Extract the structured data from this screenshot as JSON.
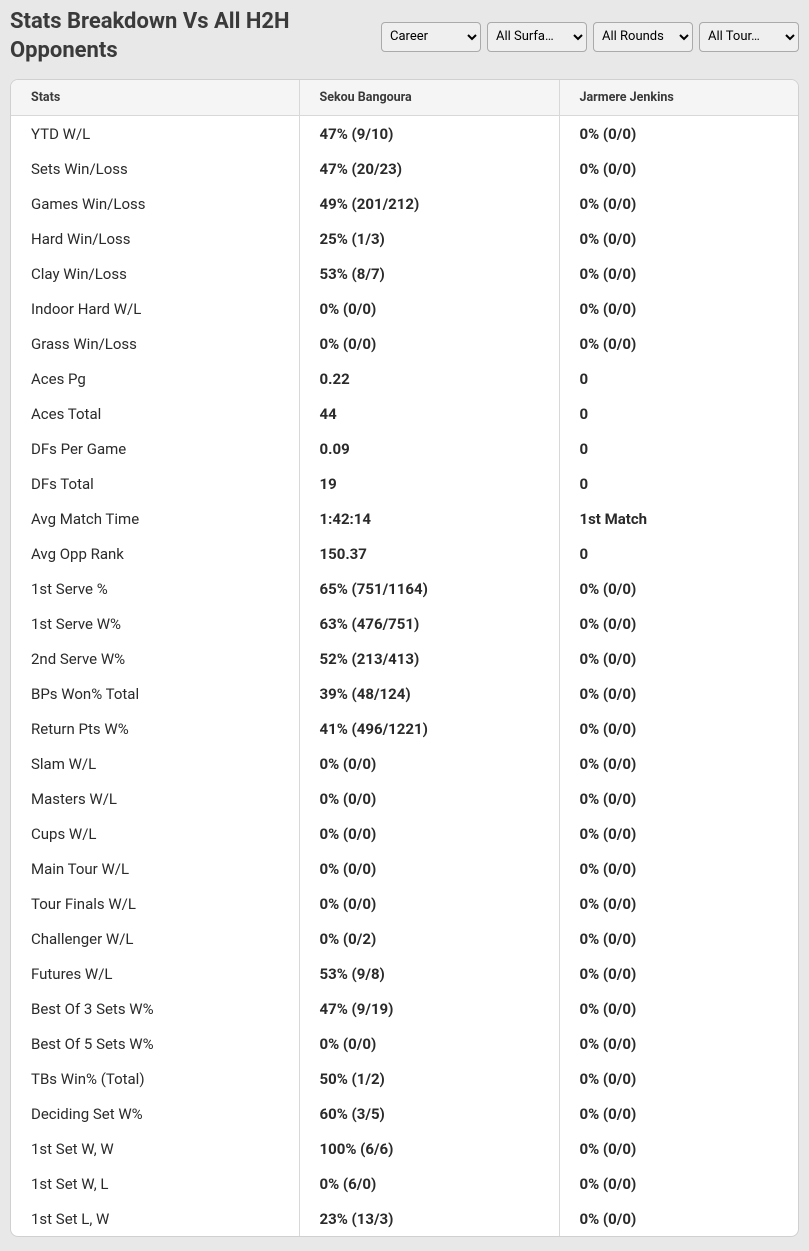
{
  "title": "Stats Breakdown Vs All H2H Opponents",
  "filters": {
    "period": "Career",
    "surface": "All Surfa…",
    "round": "All Rounds",
    "tour": "All Tour…"
  },
  "table": {
    "headers": {
      "stats": "Stats",
      "player1": "Sekou Bangoura",
      "player2": "Jarmere Jenkins"
    },
    "rows": [
      {
        "stat": "YTD W/L",
        "p1": "47% (9/10)",
        "p2": "0% (0/0)"
      },
      {
        "stat": "Sets Win/Loss",
        "p1": "47% (20/23)",
        "p2": "0% (0/0)"
      },
      {
        "stat": "Games Win/Loss",
        "p1": "49% (201/212)",
        "p2": "0% (0/0)"
      },
      {
        "stat": "Hard Win/Loss",
        "p1": "25% (1/3)",
        "p2": "0% (0/0)"
      },
      {
        "stat": "Clay Win/Loss",
        "p1": "53% (8/7)",
        "p2": "0% (0/0)"
      },
      {
        "stat": "Indoor Hard W/L",
        "p1": "0% (0/0)",
        "p2": "0% (0/0)"
      },
      {
        "stat": "Grass Win/Loss",
        "p1": "0% (0/0)",
        "p2": "0% (0/0)"
      },
      {
        "stat": "Aces Pg",
        "p1": "0.22",
        "p2": "0"
      },
      {
        "stat": "Aces Total",
        "p1": "44",
        "p2": "0"
      },
      {
        "stat": "DFs Per Game",
        "p1": "0.09",
        "p2": "0"
      },
      {
        "stat": "DFs Total",
        "p1": "19",
        "p2": "0"
      },
      {
        "stat": "Avg Match Time",
        "p1": "1:42:14",
        "p2": "1st Match"
      },
      {
        "stat": "Avg Opp Rank",
        "p1": "150.37",
        "p2": "0"
      },
      {
        "stat": "1st Serve %",
        "p1": "65% (751/1164)",
        "p2": "0% (0/0)"
      },
      {
        "stat": "1st Serve W%",
        "p1": "63% (476/751)",
        "p2": "0% (0/0)"
      },
      {
        "stat": "2nd Serve W%",
        "p1": "52% (213/413)",
        "p2": "0% (0/0)"
      },
      {
        "stat": "BPs Won% Total",
        "p1": "39% (48/124)",
        "p2": "0% (0/0)"
      },
      {
        "stat": "Return Pts W%",
        "p1": "41% (496/1221)",
        "p2": "0% (0/0)"
      },
      {
        "stat": "Slam W/L",
        "p1": "0% (0/0)",
        "p2": "0% (0/0)"
      },
      {
        "stat": "Masters W/L",
        "p1": "0% (0/0)",
        "p2": "0% (0/0)"
      },
      {
        "stat": "Cups W/L",
        "p1": "0% (0/0)",
        "p2": "0% (0/0)"
      },
      {
        "stat": "Main Tour W/L",
        "p1": "0% (0/0)",
        "p2": "0% (0/0)"
      },
      {
        "stat": "Tour Finals W/L",
        "p1": "0% (0/0)",
        "p2": "0% (0/0)"
      },
      {
        "stat": "Challenger W/L",
        "p1": "0% (0/2)",
        "p2": "0% (0/0)"
      },
      {
        "stat": "Futures W/L",
        "p1": "53% (9/8)",
        "p2": "0% (0/0)"
      },
      {
        "stat": "Best Of 3 Sets W%",
        "p1": "47% (9/19)",
        "p2": "0% (0/0)"
      },
      {
        "stat": "Best Of 5 Sets W%",
        "p1": "0% (0/0)",
        "p2": "0% (0/0)"
      },
      {
        "stat": "TBs Win% (Total)",
        "p1": "50% (1/2)",
        "p2": "0% (0/0)"
      },
      {
        "stat": "Deciding Set W%",
        "p1": "60% (3/5)",
        "p2": "0% (0/0)"
      },
      {
        "stat": "1st Set W, W",
        "p1": "100% (6/6)",
        "p2": "0% (0/0)"
      },
      {
        "stat": "1st Set W, L",
        "p1": "0% (6/0)",
        "p2": "0% (0/0)"
      },
      {
        "stat": "1st Set L, W",
        "p1": "23% (13/3)",
        "p2": "0% (0/0)"
      }
    ]
  }
}
